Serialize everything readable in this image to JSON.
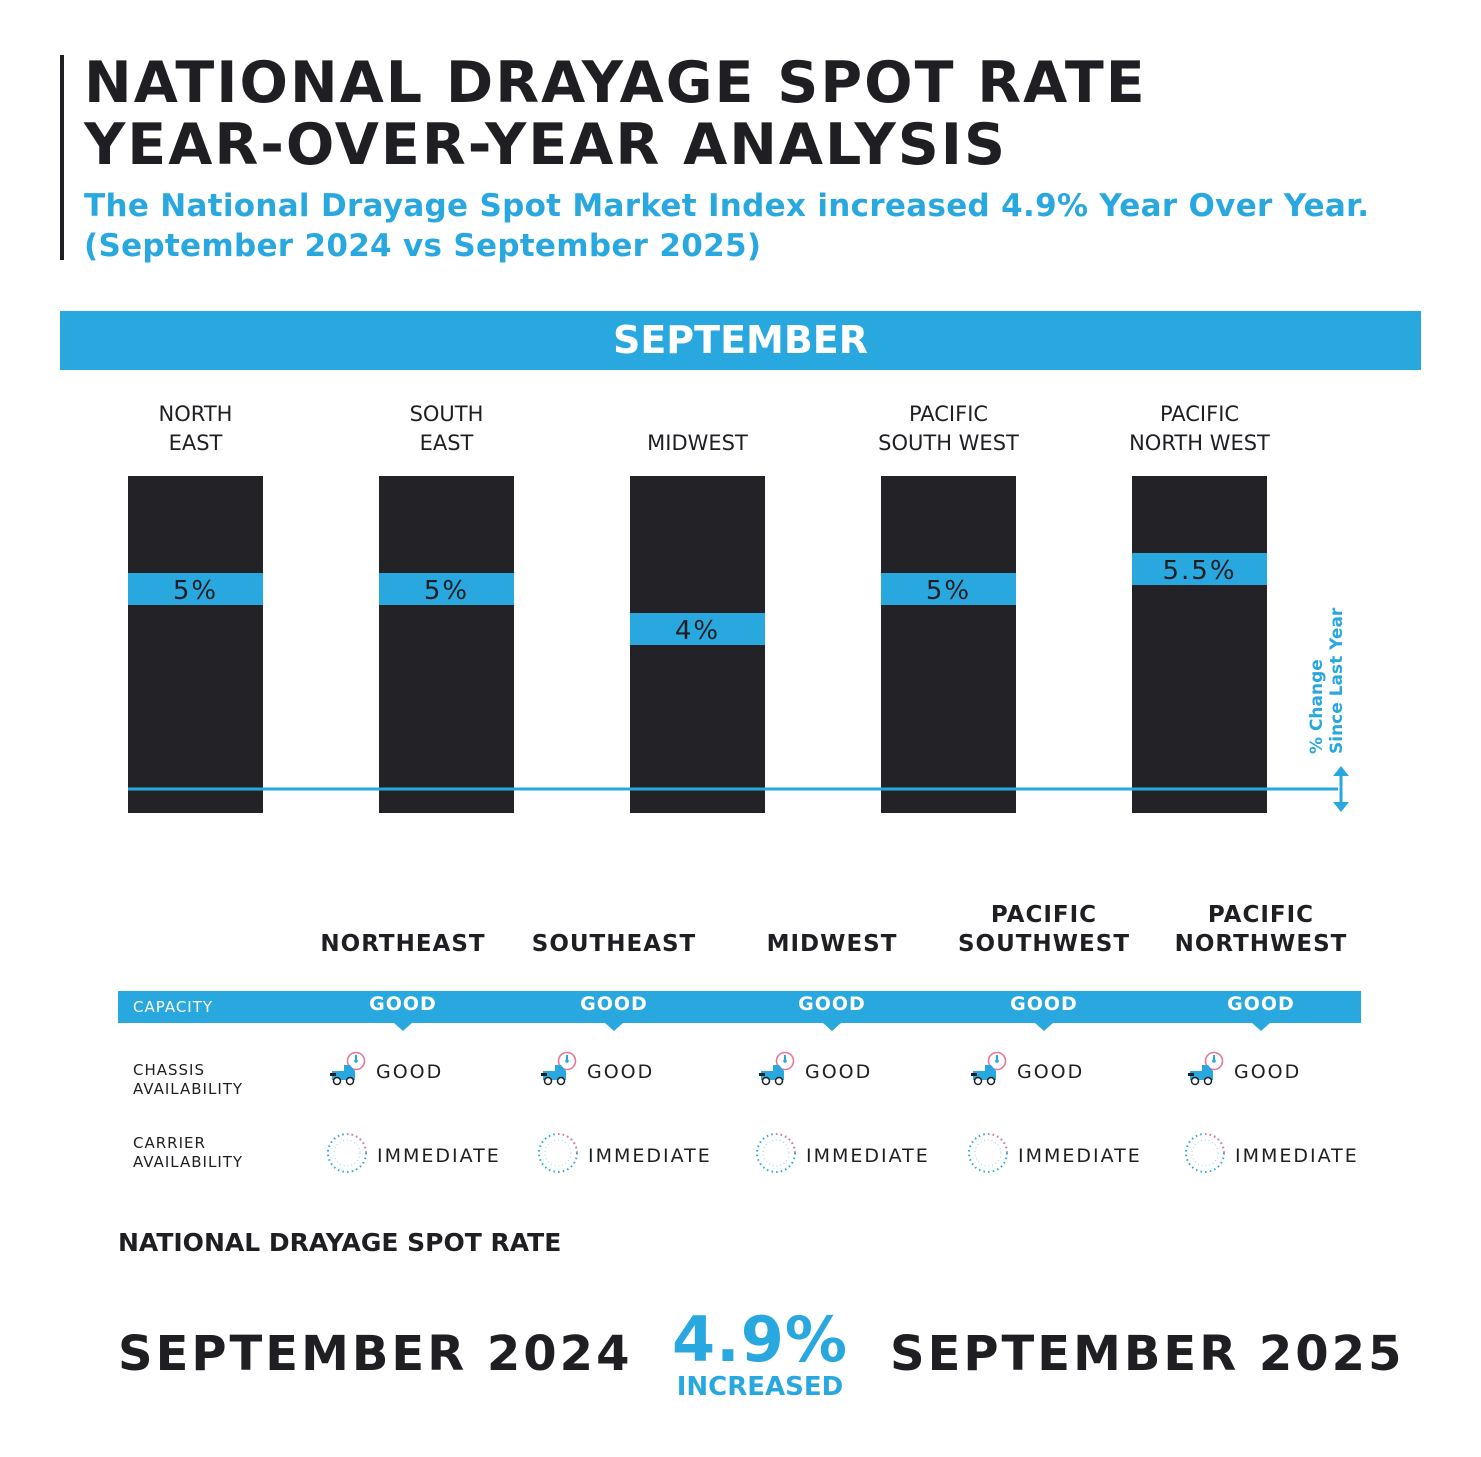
{
  "header": {
    "title_line1": "NATIONAL DRAYAGE SPOT RATE",
    "title_line2": "YEAR-OVER-YEAR ANALYSIS",
    "subtitle_line1": "The National Drayage Spot Market Index increased 4.9% Year Over Year.",
    "subtitle_line2": "(September 2024 vs September 2025)"
  },
  "month_banner": "SEPTEMBER",
  "chart_data": {
    "type": "bar",
    "categories": [
      [
        "NORTH",
        "EAST"
      ],
      [
        "SOUTH",
        "EAST"
      ],
      [
        "MIDWEST"
      ],
      [
        "PACIFIC",
        "SOUTH WEST"
      ],
      [
        "PACIFIC",
        "NORTH WEST"
      ]
    ],
    "values": [
      5,
      5,
      4,
      5,
      5.5
    ],
    "value_labels": [
      "5%",
      "5%",
      "4%",
      "5%",
      "5.5%"
    ],
    "axis_note": [
      "% Change",
      "Since Last Year"
    ],
    "ylim": [
      0,
      8
    ],
    "grid": false,
    "colors": {
      "bar": "#232227",
      "marker": "#29a8e0",
      "baseline": "#29a8e0"
    }
  },
  "table": {
    "columns": [
      [
        "NORTHEAST"
      ],
      [
        "SOUTHEAST"
      ],
      [
        "MIDWEST"
      ],
      [
        "PACIFIC",
        "SOUTHWEST"
      ],
      [
        "PACIFIC",
        "NORTHWEST"
      ]
    ],
    "rows": {
      "capacity": {
        "label": "CAPACITY",
        "values": [
          "GOOD",
          "GOOD",
          "GOOD",
          "GOOD",
          "GOOD"
        ]
      },
      "chassis": {
        "label_line1": "CHASSIS",
        "label_line2": "AVAILABILITY",
        "values": [
          "GOOD",
          "GOOD",
          "GOOD",
          "GOOD",
          "GOOD"
        ],
        "icon": "truck-gauge-icon"
      },
      "carrier": {
        "label_line1": "CARRIER",
        "label_line2": "AVAILABILITY",
        "values": [
          "IMMEDIATE",
          "IMMEDIATE",
          "IMMEDIATE",
          "IMMEDIATE",
          "IMMEDIATE"
        ],
        "icon": "dashed-clock-icon"
      }
    }
  },
  "national": {
    "title": "NATIONAL DRAYAGE SPOT RATE",
    "from_period": "SEPTEMBER 2024",
    "to_period": "SEPTEMBER 2025",
    "change": "4.9%",
    "change_word": "INCREASED"
  },
  "colors": {
    "accent": "#29a8e0",
    "dark": "#1f1e22"
  }
}
